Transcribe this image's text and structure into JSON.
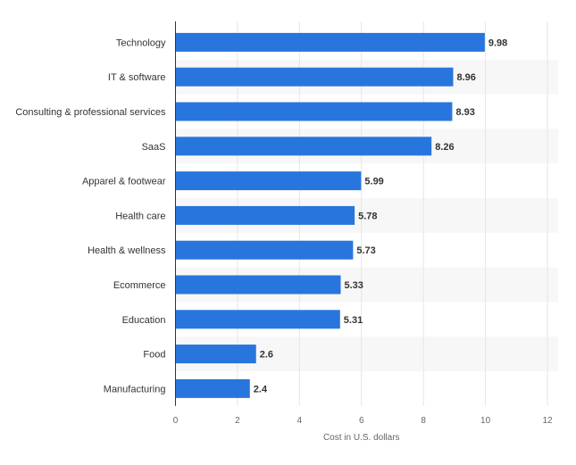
{
  "chart_data": {
    "type": "bar",
    "orientation": "horizontal",
    "categories": [
      "Technology",
      "IT & software",
      "Consulting & professional services",
      "SaaS",
      "Apparel & footwear",
      "Health care",
      "Health & wellness",
      "Ecommerce",
      "Education",
      "Food",
      "Manufacturing"
    ],
    "values": [
      9.98,
      8.96,
      8.93,
      8.26,
      5.99,
      5.78,
      5.73,
      5.33,
      5.31,
      2.6,
      2.4
    ],
    "value_labels": [
      "9.98",
      "8.96",
      "8.93",
      "8.26",
      "5.99",
      "5.78",
      "5.73",
      "5.33",
      "5.31",
      "2.6",
      "2.4"
    ],
    "title": "",
    "xlabel": "Cost in U.S. dollars",
    "ylabel": "",
    "xlim": [
      0,
      12
    ],
    "x_ticks": [
      0,
      2,
      4,
      6,
      8,
      10,
      12
    ],
    "grid": true,
    "bar_color": "#2876dd",
    "band_color": "#f7f7f7"
  }
}
